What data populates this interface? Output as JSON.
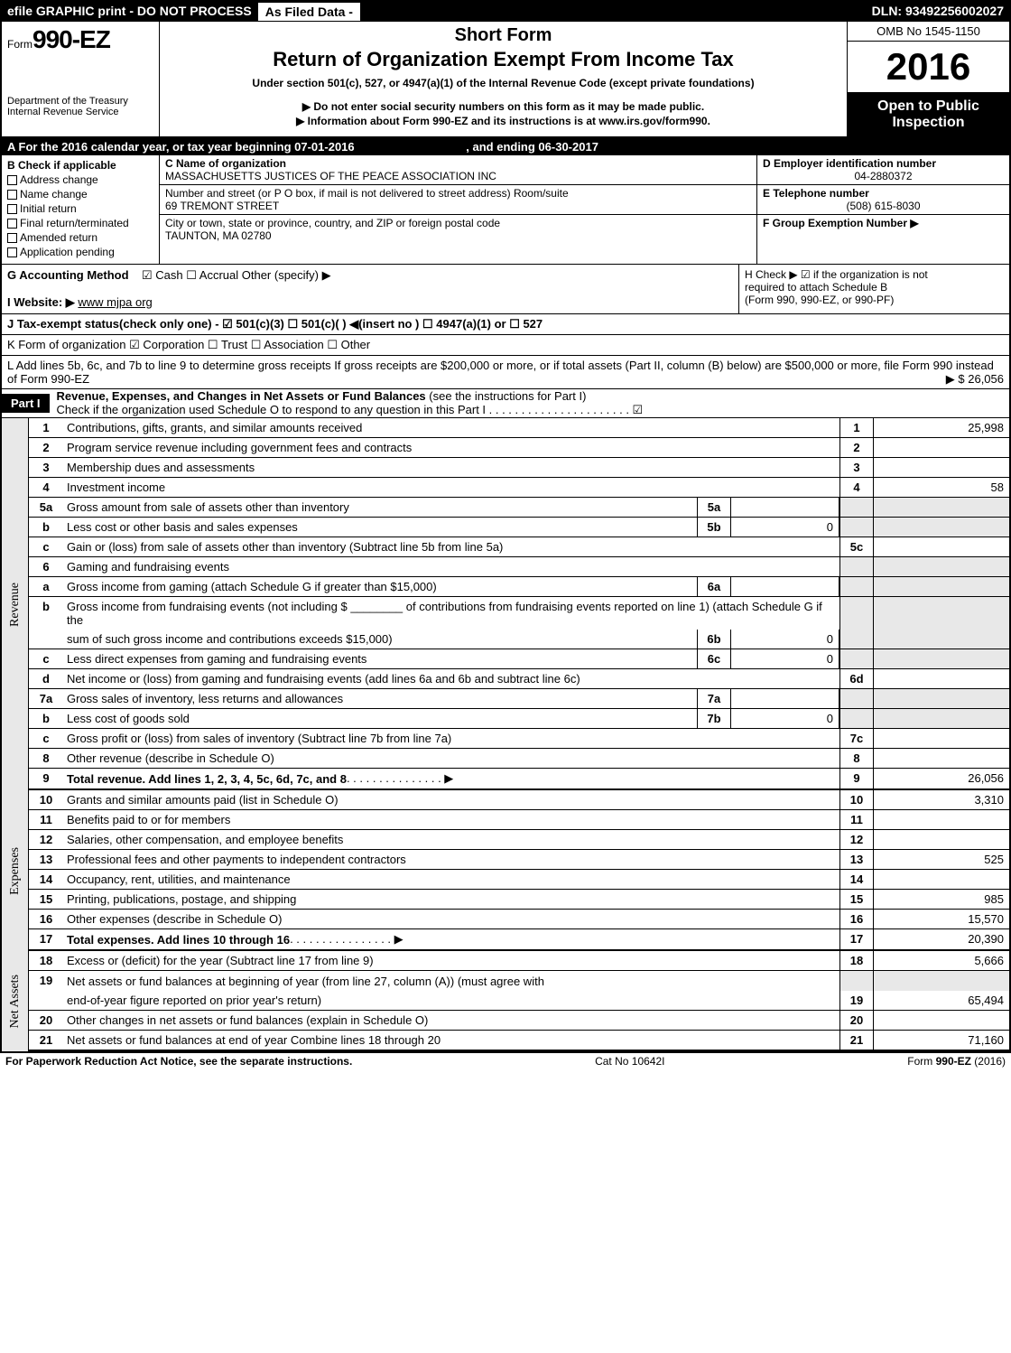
{
  "top": {
    "left": "efile GRAPHIC print - DO NOT PROCESS",
    "mid": "As Filed Data -",
    "dln": "DLN: 93492256002027"
  },
  "header": {
    "form_prefix": "Form",
    "form_no": "990-EZ",
    "dept1": "Department of the Treasury",
    "dept2": "Internal Revenue Service",
    "short": "Short Form",
    "title": "Return of Organization Exempt From Income Tax",
    "under": "Under section 501(c), 527, or 4947(a)(1) of the Internal Revenue Code (except private foundations)",
    "notice1": "▶ Do not enter social security numbers on this form as it may be made public.",
    "notice2": "▶ Information about Form 990-EZ and its instructions is at www.irs.gov/form990.",
    "omb": "OMB No 1545-1150",
    "year": "2016",
    "open1": "Open to Public",
    "open2": "Inspection"
  },
  "rowA": {
    "text": "A  For the 2016 calendar year, or tax year beginning 07-01-2016",
    "end": ", and ending 06-30-2017"
  },
  "B": {
    "label": "B  Check if applicable",
    "opts": [
      "Address change",
      "Name change",
      "Initial return",
      "Final return/terminated",
      "Amended return",
      "Application pending"
    ]
  },
  "C": {
    "label": "C Name of organization",
    "name": "MASSACHUSETTS JUSTICES OF THE PEACE ASSOCIATION INC",
    "addr_label": "Number and street (or P O  box, if mail is not delivered to street address)  Room/suite",
    "addr": "69 TREMONT STREET",
    "city_label": "City or town, state or province, country, and ZIP or foreign postal code",
    "city": "TAUNTON, MA  02780"
  },
  "D": {
    "label": "D Employer identification number",
    "val": "04-2880372"
  },
  "E": {
    "label": "E Telephone number",
    "val": "(508) 615-8030"
  },
  "F": {
    "label": "F Group Exemption Number  ▶",
    "val": ""
  },
  "G": {
    "label": "G Accounting Method",
    "opts": "☑ Cash   ☐ Accrual   Other (specify) ▶"
  },
  "H": {
    "label": "H   Check ▶   ☑  if the organization is not",
    "line2": "required to attach Schedule B",
    "line3": "(Form 990, 990-EZ, or 990-PF)"
  },
  "I": {
    "label": "I Website: ▶",
    "val": "www mjpa org"
  },
  "J": {
    "text": "J Tax-exempt status(check only one) -  ☑ 501(c)(3)  ☐ 501(c)( )  ◀(insert no )  ☐ 4947(a)(1) or  ☐ 527"
  },
  "K": {
    "text": "K Form of organization     ☑ Corporation   ☐ Trust   ☐ Association   ☐ Other"
  },
  "L": {
    "text": "L Add lines 5b, 6c, and 7b to line 9 to determine gross receipts  If gross receipts are $200,000 or more, or if total assets (Part II, column (B) below) are $500,000 or more, file Form 990 instead of Form 990-EZ",
    "val": "▶ $ 26,056"
  },
  "part1": {
    "badge": "Part I",
    "title": "Revenue, Expenses, and Changes in Net Assets or Fund Balances",
    "sub": "(see the instructions for Part I)",
    "check": "Check if the organization used Schedule O to respond to any question in this Part I . . . . . . . . . . . . . . . . . . . . . .  ☑"
  },
  "side_labels": {
    "rev": "Revenue",
    "exp": "Expenses",
    "net": "Net Assets"
  },
  "lines": {
    "1": {
      "desc": "Contributions, gifts, grants, and similar amounts received",
      "r": "1",
      "val": "25,998"
    },
    "2": {
      "desc": "Program service revenue including government fees and contracts",
      "r": "2",
      "val": ""
    },
    "3": {
      "desc": "Membership dues and assessments",
      "r": "3",
      "val": ""
    },
    "4": {
      "desc": "Investment income",
      "r": "4",
      "val": "58"
    },
    "5a": {
      "desc": "Gross amount from sale of assets other than inventory",
      "m": "5a",
      "mval": ""
    },
    "5b": {
      "desc": "Less  cost or other basis and sales expenses",
      "m": "5b",
      "mval": "0"
    },
    "5c": {
      "desc": "Gain or (loss) from sale of assets other than inventory (Subtract line 5b from line 5a)",
      "r": "5c",
      "val": ""
    },
    "6": {
      "desc": "Gaming and fundraising events"
    },
    "6a": {
      "desc": "Gross income from gaming (attach Schedule G if greater than $15,000)",
      "m": "6a",
      "mval": ""
    },
    "6b1": {
      "desc": "Gross income from fundraising events (not including $ ________ of contributions from fundraising events reported on line 1) (attach Schedule G if the"
    },
    "6b2": {
      "desc": "sum of such gross income and contributions exceeds $15,000)",
      "m": "6b",
      "mval": "0"
    },
    "6c": {
      "desc": "Less  direct expenses from gaming and fundraising events",
      "m": "6c",
      "mval": "0"
    },
    "6d": {
      "desc": "Net income or (loss) from gaming and fundraising events (add lines 6a and 6b and subtract line 6c)",
      "r": "6d",
      "val": ""
    },
    "7a": {
      "desc": "Gross sales of inventory, less returns and allowances",
      "m": "7a",
      "mval": ""
    },
    "7b": {
      "desc": "Less  cost of goods sold",
      "m": "7b",
      "mval": "0"
    },
    "7c": {
      "desc": "Gross profit or (loss) from sales of inventory (Subtract line 7b from line 7a)",
      "r": "7c",
      "val": ""
    },
    "8": {
      "desc": "Other revenue (describe in Schedule O)",
      "r": "8",
      "val": ""
    },
    "9": {
      "desc": "Total revenue. Add lines 1, 2, 3, 4, 5c, 6d, 7c, and 8",
      "r": "9",
      "val": "26,056",
      "bold": true
    },
    "10": {
      "desc": "Grants and similar amounts paid (list in Schedule O)",
      "r": "10",
      "val": "3,310"
    },
    "11": {
      "desc": "Benefits paid to or for members",
      "r": "11",
      "val": ""
    },
    "12": {
      "desc": "Salaries, other compensation, and employee benefits",
      "r": "12",
      "val": ""
    },
    "13": {
      "desc": "Professional fees and other payments to independent contractors",
      "r": "13",
      "val": "525"
    },
    "14": {
      "desc": "Occupancy, rent, utilities, and maintenance",
      "r": "14",
      "val": ""
    },
    "15": {
      "desc": "Printing, publications, postage, and shipping",
      "r": "15",
      "val": "985"
    },
    "16": {
      "desc": "Other expenses (describe in Schedule O)",
      "r": "16",
      "val": "15,570"
    },
    "17": {
      "desc": "Total expenses. Add lines 10 through 16",
      "r": "17",
      "val": "20,390",
      "bold": true
    },
    "18": {
      "desc": "Excess or (deficit) for the year (Subtract line 17 from line 9)",
      "r": "18",
      "val": "5,666"
    },
    "19a": {
      "desc": "Net assets or fund balances at beginning of year (from line 27, column (A)) (must agree with"
    },
    "19b": {
      "desc": "end-of-year figure reported on prior year's return)",
      "r": "19",
      "val": "65,494"
    },
    "20": {
      "desc": "Other changes in net assets or fund balances (explain in Schedule O)",
      "r": "20",
      "val": ""
    },
    "21": {
      "desc": "Net assets or fund balances at end of year  Combine lines 18 through 20",
      "r": "21",
      "val": "71,160"
    }
  },
  "footer": {
    "left": "For Paperwork Reduction Act Notice, see the separate instructions.",
    "mid": "Cat No  10642I",
    "right": "Form 990-EZ (2016)"
  }
}
